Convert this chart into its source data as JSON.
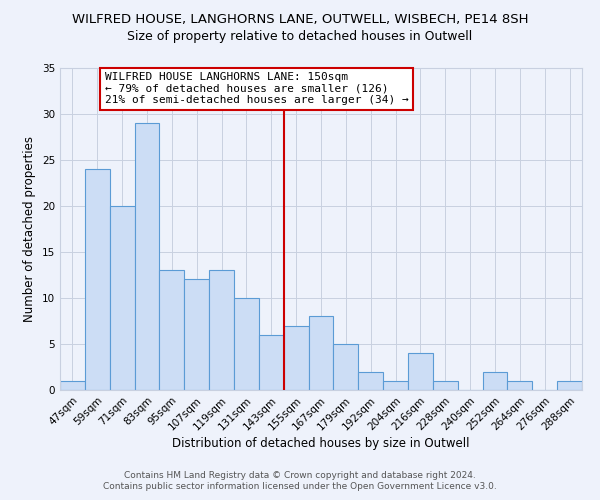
{
  "title": "WILFRED HOUSE, LANGHORNS LANE, OUTWELL, WISBECH, PE14 8SH",
  "subtitle": "Size of property relative to detached houses in Outwell",
  "xlabel": "Distribution of detached houses by size in Outwell",
  "ylabel": "Number of detached properties",
  "bar_labels": [
    "47sqm",
    "59sqm",
    "71sqm",
    "83sqm",
    "95sqm",
    "107sqm",
    "119sqm",
    "131sqm",
    "143sqm",
    "155sqm",
    "167sqm",
    "179sqm",
    "192sqm",
    "204sqm",
    "216sqm",
    "228sqm",
    "240sqm",
    "252sqm",
    "264sqm",
    "276sqm",
    "288sqm"
  ],
  "bar_values": [
    1,
    24,
    20,
    29,
    13,
    12,
    13,
    10,
    6,
    7,
    8,
    5,
    2,
    1,
    4,
    1,
    0,
    2,
    1,
    0,
    1
  ],
  "bar_color": "#ccddf5",
  "bar_edge_color": "#5b9bd5",
  "vline_x": 8.5,
  "vline_color": "#cc0000",
  "ylim": [
    0,
    35
  ],
  "yticks": [
    0,
    5,
    10,
    15,
    20,
    25,
    30,
    35
  ],
  "annotation_title": "WILFRED HOUSE LANGHORNS LANE: 150sqm",
  "annotation_line1": "← 79% of detached houses are smaller (126)",
  "annotation_line2": "21% of semi-detached houses are larger (34) →",
  "annotation_box_color": "#ffffff",
  "annotation_box_edge": "#cc0000",
  "footer1": "Contains HM Land Registry data © Crown copyright and database right 2024.",
  "footer2": "Contains public sector information licensed under the Open Government Licence v3.0.",
  "background_color": "#eef2fb",
  "grid_color": "#c8d0e0",
  "title_fontsize": 9.5,
  "subtitle_fontsize": 9,
  "axis_label_fontsize": 8.5,
  "tick_fontsize": 7.5,
  "annotation_fontsize": 8,
  "footer_fontsize": 6.5
}
